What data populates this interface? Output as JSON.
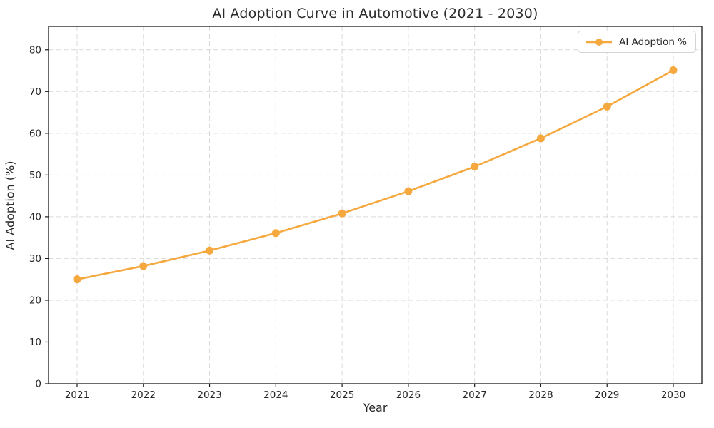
{
  "chart_data": {
    "type": "line",
    "title": "AI Adoption Curve in Automotive (2021 - 2030)",
    "xlabel": "Year",
    "ylabel": "AI Adoption (%)",
    "x": [
      "2021",
      "2022",
      "2023",
      "2024",
      "2025",
      "2026",
      "2027",
      "2028",
      "2029",
      "2030"
    ],
    "series": [
      {
        "name": "AI Adoption %",
        "values": [
          25.0,
          28.2,
          31.9,
          36.1,
          40.8,
          46.1,
          52.0,
          58.8,
          66.4,
          75.1
        ],
        "color": "#F4A83E",
        "marker": "circle",
        "line_style": "solid"
      }
    ],
    "ylim": [
      0,
      85.6
    ],
    "yticks": [
      0,
      10,
      20,
      30,
      40,
      50,
      60,
      70,
      80
    ],
    "grid": {
      "visible": true,
      "style": "dashed",
      "color": "#d3d3d3"
    },
    "legend": {
      "position": "upper-right",
      "entries": [
        "AI Adoption %"
      ]
    }
  },
  "colors": {
    "accent_line": "#F4A83E",
    "spine": "#1a1a1a",
    "grid": "#d3d3d3",
    "text": "#262626",
    "background": "#ffffff"
  }
}
